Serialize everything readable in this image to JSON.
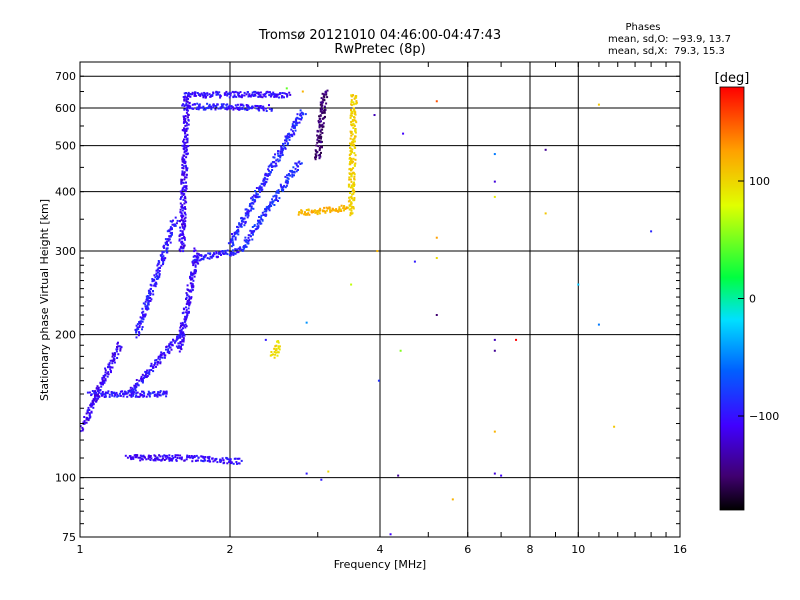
{
  "chart_data": {
    "type": "scatter",
    "title": "Tromsø 20121010 04:46:00-04:47:43",
    "subtitle": "RwPretec (8p)",
    "xlabel": "Frequency [MHz]",
    "ylabel": "Stationary phase Virtual Height [km]",
    "x_scale": "log",
    "y_scale": "log",
    "xlim": [
      1,
      16
    ],
    "ylim": [
      75,
      750
    ],
    "x_ticks": [
      "1",
      "2",
      "4",
      "6",
      "8",
      "10",
      "16"
    ],
    "y_ticks": [
      "75",
      "100",
      "200",
      "300",
      "400",
      "500",
      "600",
      "700"
    ],
    "grid": true,
    "stats": {
      "title": "Phases",
      "line_O": "mean, sd,O: −93.9, 13.7",
      "line_X": "mean, sd,X:  79.3, 15.3"
    },
    "colorbar": {
      "label": "[deg]",
      "range": [
        -180,
        180
      ],
      "ticks": [
        "100",
        "0",
        "−100"
      ],
      "tick_values": [
        100,
        0,
        -100
      ]
    },
    "traces": [
      {
        "freq": [
          1.62,
          2.62
        ],
        "height": [
          640,
          640
        ],
        "phase": -105
      },
      {
        "freq": [
          1.62,
          2.4
        ],
        "height": [
          605,
          600
        ],
        "phase": -100
      },
      {
        "freq": [
          1.6,
          1.64
        ],
        "height": [
          300,
          640
        ],
        "phase": -110
      },
      {
        "freq": [
          1.58,
          1.72
        ],
        "height": [
          185,
          300
        ],
        "phase": -108
      },
      {
        "freq": [
          1.3,
          1.55
        ],
        "height": [
          200,
          350
        ],
        "phase": -100
      },
      {
        "freq": [
          1.7,
          2.1
        ],
        "height": [
          290,
          300
        ],
        "phase": -98
      },
      {
        "freq": [
          2.1,
          2.75
        ],
        "height": [
          300,
          460
        ],
        "phase": -92
      },
      {
        "freq": [
          2.0,
          2.8
        ],
        "height": [
          310,
          590
        ],
        "phase": -95
      },
      {
        "freq": [
          3.0,
          3.1
        ],
        "height": [
          470,
          650
        ],
        "phase": -150
      },
      {
        "freq": [
          3.5,
          3.55
        ],
        "height": [
          360,
          640
        ],
        "phase": 95
      },
      {
        "freq": [
          2.75,
          3.45
        ],
        "height": [
          360,
          370
        ],
        "phase": 110
      },
      {
        "freq": [
          1.05,
          1.5
        ],
        "height": [
          150,
          150
        ],
        "phase": -100
      },
      {
        "freq": [
          1.25,
          1.6
        ],
        "height": [
          150,
          200
        ],
        "phase": -105
      },
      {
        "freq": [
          1.0,
          1.2
        ],
        "height": [
          125,
          190
        ],
        "phase": -110
      },
      {
        "freq": [
          1.25,
          1.62
        ],
        "height": [
          110,
          110
        ],
        "phase": -110
      },
      {
        "freq": [
          1.65,
          2.1
        ],
        "height": [
          110,
          108
        ],
        "phase": -105
      },
      {
        "freq": [
          2.44,
          2.52
        ],
        "height": [
          180,
          193
        ],
        "phase": 90
      }
    ],
    "points": [
      {
        "freq": 5.2,
        "height": 620,
        "phase": 150
      },
      {
        "freq": 11.0,
        "height": 610,
        "phase": 100
      },
      {
        "freq": 4.45,
        "height": 530,
        "phase": -110
      },
      {
        "freq": 6.8,
        "height": 480,
        "phase": -60
      },
      {
        "freq": 8.6,
        "height": 490,
        "phase": -140
      },
      {
        "freq": 6.8,
        "height": 420,
        "phase": -120
      },
      {
        "freq": 6.8,
        "height": 390,
        "phase": 80
      },
      {
        "freq": 8.6,
        "height": 360,
        "phase": 100
      },
      {
        "freq": 14.0,
        "height": 330,
        "phase": -95
      },
      {
        "freq": 5.2,
        "height": 320,
        "phase": 120
      },
      {
        "freq": 3.95,
        "height": 300,
        "phase": 110
      },
      {
        "freq": 4.7,
        "height": 285,
        "phase": -100
      },
      {
        "freq": 5.2,
        "height": 290,
        "phase": 90
      },
      {
        "freq": 3.5,
        "height": 255,
        "phase": 60
      },
      {
        "freq": 10.0,
        "height": 255,
        "phase": -30
      },
      {
        "freq": 5.2,
        "height": 220,
        "phase": -150
      },
      {
        "freq": 11.0,
        "height": 210,
        "phase": -60
      },
      {
        "freq": 2.85,
        "height": 212,
        "phase": -50
      },
      {
        "freq": 7.5,
        "height": 195,
        "phase": 180
      },
      {
        "freq": 6.8,
        "height": 195,
        "phase": -130
      },
      {
        "freq": 6.8,
        "height": 185,
        "phase": -140
      },
      {
        "freq": 4.4,
        "height": 185,
        "phase": 40
      },
      {
        "freq": 2.36,
        "height": 195,
        "phase": -100
      },
      {
        "freq": 3.98,
        "height": 160,
        "phase": -90
      },
      {
        "freq": 6.8,
        "height": 125,
        "phase": 110
      },
      {
        "freq": 11.8,
        "height": 128,
        "phase": 100
      },
      {
        "freq": 3.15,
        "height": 103,
        "phase": 90
      },
      {
        "freq": 2.85,
        "height": 102,
        "phase": -100
      },
      {
        "freq": 3.05,
        "height": 99,
        "phase": -100
      },
      {
        "freq": 4.35,
        "height": 101,
        "phase": -140
      },
      {
        "freq": 6.8,
        "height": 102,
        "phase": -120
      },
      {
        "freq": 7.0,
        "height": 101,
        "phase": -110
      },
      {
        "freq": 5.6,
        "height": 90,
        "phase": 110
      },
      {
        "freq": 4.2,
        "height": 76,
        "phase": -110
      },
      {
        "freq": 2.6,
        "height": 660,
        "phase": 30
      },
      {
        "freq": 2.8,
        "height": 650,
        "phase": 110
      },
      {
        "freq": 3.9,
        "height": 580,
        "phase": -130
      }
    ]
  }
}
